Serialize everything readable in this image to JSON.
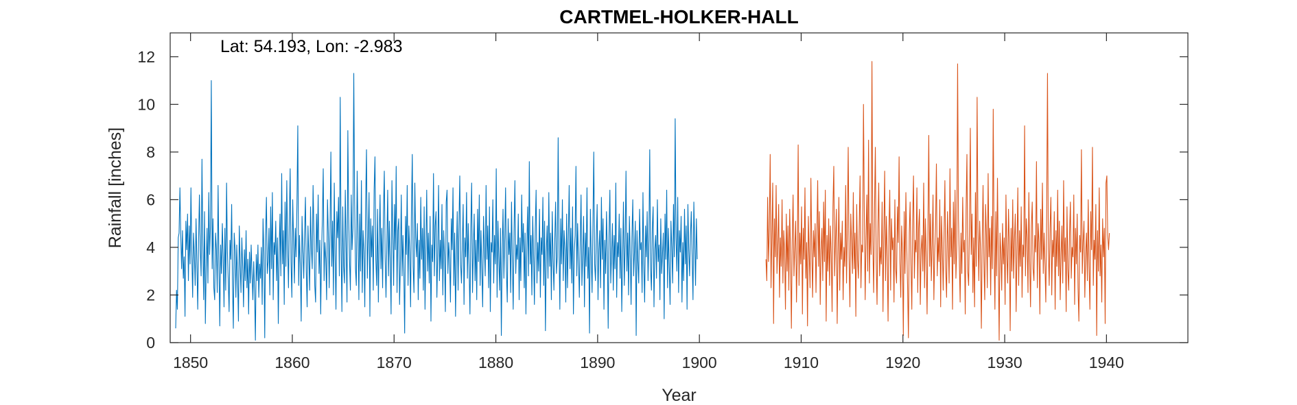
{
  "chart_data": {
    "type": "line",
    "title": "CARTMEL-HOLKER-HALL",
    "annotation": "Lat: 54.193, Lon: -2.983",
    "xlabel": "Year",
    "ylabel": "Rainfall [inches]",
    "xlim": [
      1848,
      1948
    ],
    "ylim": [
      0,
      13
    ],
    "xticks": [
      1850,
      1860,
      1870,
      1880,
      1890,
      1900,
      1910,
      1920,
      1930,
      1940
    ],
    "yticks": [
      0,
      2,
      4,
      6,
      8,
      10,
      12
    ],
    "grid": false,
    "legend": false,
    "x_start": 1848.54,
    "x_step_years": 0.08333,
    "series": [
      {
        "color": "#0072BD",
        "start_year": 1848.54,
        "values": [
          0.6,
          2.2,
          1.4,
          4.4,
          4.6,
          6.5,
          4.5,
          3.1,
          4.7,
          2.7,
          3.6,
          1.1,
          5.1,
          3.9,
          5.4,
          2.6,
          4.9,
          3.3,
          6.5,
          3.8,
          1.9,
          4.6,
          3.7,
          2.4,
          5.2,
          3.4,
          1.4,
          4.3,
          6.2,
          3.9,
          2.8,
          7.7,
          4.1,
          1.8,
          5.5,
          0.8,
          3.2,
          4.8,
          2.5,
          6.3,
          3.7,
          4.9,
          11.0,
          3.1,
          5.2,
          2.3,
          1.8,
          4.6,
          3.9,
          2.1,
          6.6,
          3.4,
          0.7,
          4.1,
          2.9,
          5.0,
          3.6,
          1.5,
          4.8,
          2.2,
          6.7,
          3.8,
          2.6,
          1.3,
          4.3,
          3.5,
          5.8,
          2.4,
          0.6,
          4.6,
          3.9,
          1.9,
          4.1,
          2.7,
          0.9,
          4.9,
          3.3,
          2.1,
          4.4,
          3.2,
          1.5,
          3.9,
          2.6,
          4.7,
          2.3,
          3.5,
          1.2,
          3.8,
          2.5,
          4.1,
          2.9,
          1.8,
          3.4,
          2.2,
          0.1,
          3.7,
          2.6,
          4.1,
          1.9,
          3.3,
          2.7,
          4.0,
          1.6,
          5.2,
          3.8,
          0.2,
          4.5,
          6.1,
          2.9,
          3.4,
          4.8,
          2.0,
          5.7,
          3.1,
          6.3,
          1.8,
          4.2,
          3.7,
          5.1,
          2.6,
          4.4,
          0.8,
          3.9,
          5.4,
          2.8,
          7.1,
          3.3,
          4.7,
          1.6,
          5.9,
          3.2,
          6.8,
          4.1,
          2.3,
          5.2,
          7.3,
          3.4,
          1.9,
          6.0,
          4.3,
          2.5,
          4.8,
          3.6,
          5.9,
          9.1,
          2.4,
          4.5,
          3.2,
          0.9,
          5.3,
          3.9,
          2.7,
          4.6,
          6.1,
          3.0,
          1.5,
          4.9,
          3.6,
          2.2,
          5.7,
          4.0,
          3.1,
          6.6,
          4.7,
          2.4,
          1.7,
          5.4,
          3.8,
          6.2,
          2.9,
          4.3,
          1.2,
          3.8,
          5.2,
          7.3,
          2.6,
          4.2,
          3.5,
          1.8,
          6.0,
          4.6,
          2.3,
          4.8,
          8.0,
          3.2,
          5.1,
          2.0,
          6.7,
          3.7,
          1.4,
          5.5,
          4.4,
          6.1,
          2.8,
          10.3,
          4.1,
          1.3,
          5.7,
          3.2,
          2.5,
          6.4,
          4.0,
          1.7,
          8.9,
          5.3,
          3.4,
          2.2,
          6.2,
          3.9,
          4.8,
          11.3,
          5.9,
          3.1,
          2.4,
          7.2,
          4.6,
          1.8,
          5.4,
          3.0,
          6.8,
          2.1,
          4.7,
          3.8,
          1.5,
          5.9,
          8.1,
          2.7,
          4.4,
          6.3,
          1.1,
          5.2,
          3.6,
          4.9,
          2.2,
          6.4,
          7.8,
          3.5,
          2.4,
          5.6,
          1.7,
          4.3,
          6.2,
          3.1,
          4.8,
          2.3,
          5.5,
          7.2,
          3.6,
          1.9,
          4.1,
          6.4,
          2.8,
          5.1,
          3.4,
          1.2,
          6.8,
          4.6,
          2.4,
          5.8,
          3.9,
          7.4,
          2.1,
          4.7,
          5.2,
          1.6,
          3.4,
          6.2,
          2.8,
          4.5,
          3.1,
          0.4,
          5.3,
          3.7,
          6.6,
          2.4,
          4.9,
          3.8,
          1.5,
          5.6,
          7.9,
          3.2,
          2.1,
          6.7,
          4.4,
          3.6,
          5.0,
          1.8,
          4.3,
          2.7,
          6.1,
          3.5,
          4.8,
          2.2,
          5.7,
          1.4,
          3.9,
          6.4,
          3.0,
          4.6,
          2.5,
          5.3,
          0.9,
          4.1,
          3.4,
          7.1,
          2.8,
          4.9,
          5.5,
          1.9,
          3.8,
          6.6,
          2.6,
          4.3,
          3.1,
          5.8,
          2.0,
          4.7,
          3.6,
          1.3,
          5.9,
          6.4,
          2.9,
          4.2,
          3.5,
          1.7,
          5.2,
          3.9,
          6.5,
          2.4,
          4.6,
          1.1,
          3.7,
          5.5,
          2.2,
          4.9,
          7.0,
          3.3,
          2.5,
          4.1,
          5.8,
          1.6,
          4.4,
          3.6,
          6.3,
          2.7,
          5.0,
          3.2,
          1.2,
          4.8,
          6.7,
          2.1,
          3.9,
          5.4,
          2.6,
          4.3,
          1.8,
          5.6,
          3.4,
          6.2,
          2.4,
          4.7,
          3.1,
          1.5,
          5.3,
          4.0,
          2.8,
          6.6,
          3.5,
          4.9,
          2.3,
          5.7,
          1.3,
          4.2,
          3.8,
          6.0,
          2.5,
          4.5,
          3.3,
          7.3,
          1.9,
          5.1,
          3.6,
          2.2,
          4.8,
          0.3,
          3.9,
          5.6,
          2.7,
          4.3,
          6.5,
          3.0,
          1.7,
          5.2,
          3.7,
          4.6,
          2.1,
          5.9,
          3.4,
          1.4,
          4.7,
          6.8,
          2.9,
          4.1,
          3.5,
          5.4,
          1.8,
          4.4,
          2.6,
          6.2,
          3.8,
          5.0,
          2.3,
          4.6,
          1.2,
          3.9,
          5.7,
          2.8,
          7.6,
          3.3,
          4.5,
          2.0,
          5.3,
          3.6,
          1.6,
          4.8,
          6.4,
          2.5,
          4.2,
          3.0,
          5.6,
          1.9,
          4.4,
          3.7,
          6.1,
          2.4,
          5.1,
          0.5,
          3.8,
          4.9,
          2.7,
          6.3,
          3.2,
          4.6,
          1.8,
          5.5,
          3.5,
          2.2,
          4.3,
          5.9,
          2.9,
          3.6,
          8.6,
          4.1,
          1.4,
          5.2,
          3.3,
          6.0,
          2.6,
          4.7,
          3.9,
          1.7,
          5.4,
          2.3,
          4.4,
          6.6,
          3.1,
          4.8,
          2.5,
          5.7,
          1.2,
          3.8,
          4.5,
          7.4,
          2.8,
          5.0,
          3.4,
          1.9,
          4.2,
          6.2,
          2.4,
          3.7,
          5.3,
          1.5,
          4.6,
          3.2,
          6.5,
          2.7,
          4.0,
          0.4,
          5.6,
          3.6,
          2.1,
          4.9,
          8.0,
          3.3,
          2.6,
          4.4,
          5.8,
          1.8,
          3.9,
          4.7,
          2.3,
          6.1,
          3.5,
          5.2,
          1.4,
          4.3,
          2.9,
          5.5,
          3.8,
          0.6,
          4.6,
          6.4,
          2.5,
          3.7,
          5.0,
          2.2,
          4.5,
          3.1,
          6.7,
          1.9,
          4.2,
          3.6,
          5.4,
          2.7,
          4.8,
          1.3,
          3.5,
          5.9,
          2.4,
          4.1,
          7.2,
          3.0,
          4.6,
          2.0,
          5.3,
          3.7,
          1.6,
          4.4,
          6.0,
          2.8,
          3.8,
          5.1,
          0.3,
          4.7,
          3.4,
          2.5,
          5.6,
          3.9,
          4.2,
          2.1,
          6.3,
          3.3,
          1.7,
          4.9,
          3.6,
          5.5,
          2.6,
          4.3,
          8.1,
          3.1,
          2.2,
          4.8,
          5.7,
          1.5,
          3.9,
          4.5,
          2.7,
          6.0,
          3.4,
          4.1,
          1.8,
          5.2,
          2.9,
          3.7,
          4.6,
          1.0,
          5.4,
          3.5,
          6.4,
          2.3,
          4.8,
          3.2,
          1.6,
          5.1,
          4.0,
          2.5,
          5.8,
          3.6,
          9.4,
          4.4,
          3.0,
          6.1,
          2.1,
          4.7,
          3.8,
          5.3,
          1.7,
          4.2,
          2.6,
          5.6,
          3.3,
          4.9,
          1.4,
          5.8,
          3.9,
          2.8,
          4.5,
          5.5,
          3.6,
          1.8,
          5.9,
          4.2,
          2.4,
          5.2,
          3.5
        ]
      },
      {
        "color": "#D95319",
        "start_year": 1906.54,
        "values": [
          3.5,
          2.6,
          6.1,
          3.4,
          4.8,
          7.9,
          2.3,
          4.5,
          6.7,
          0.8,
          5.2,
          3.6,
          6.6,
          2.9,
          4.1,
          5.8,
          1.9,
          4.4,
          3.2,
          6.0,
          2.5,
          4.7,
          3.8,
          1.4,
          5.4,
          3.0,
          4.9,
          2.2,
          5.6,
          3.7,
          0.6,
          4.3,
          6.2,
          2.8,
          4.0,
          5.1,
          1.7,
          3.9,
          8.3,
          2.4,
          4.6,
          3.3,
          5.7,
          1.2,
          4.8,
          3.5,
          6.5,
          2.7,
          4.2,
          0.7,
          5.3,
          3.8,
          2.3,
          6.9,
          4.1,
          1.9,
          4.7,
          3.6,
          5.0,
          2.1,
          4.4,
          6.8,
          3.2,
          5.5,
          1.6,
          3.9,
          4.8,
          2.6,
          5.9,
          3.4,
          6.4,
          0.9,
          4.5,
          3.0,
          5.2,
          2.4,
          4.9,
          3.7,
          1.3,
          5.7,
          7.4,
          2.8,
          4.3,
          5.6,
          0.8,
          3.8,
          6.1,
          2.2,
          4.6,
          3.5,
          5.1,
          1.8,
          4.0,
          3.2,
          6.6,
          2.5,
          4.8,
          8.2,
          3.6,
          1.5,
          5.4,
          4.2,
          2.9,
          6.3,
          3.1,
          4.6,
          1.1,
          5.8,
          3.5,
          2.7,
          4.9,
          7.0,
          2.3,
          4.1,
          3.8,
          10.0,
          5.5,
          1.8,
          4.4,
          6.2,
          3.0,
          8.5,
          2.5,
          5.0,
          3.7,
          11.8,
          4.3,
          2.1,
          5.6,
          8.2,
          3.4,
          1.6,
          4.8,
          6.7,
          2.8,
          4.0,
          3.3,
          5.9,
          1.3,
          4.5,
          7.2,
          2.6,
          5.3,
          3.6,
          0.9,
          4.7,
          6.4,
          2.2,
          5.2,
          3.9,
          4.4,
          1.7,
          6.0,
          3.1,
          2.5,
          5.7,
          4.2,
          7.8,
          3.4,
          1.9,
          4.9,
          3.7,
          0.3,
          5.5,
          2.9,
          6.3,
          4.1,
          2.4,
          0.2,
          4.6,
          5.9,
          3.3,
          1.4,
          5.1,
          7.0,
          2.7,
          4.3,
          3.8,
          6.5,
          2.1,
          4.8,
          5.6,
          1.6,
          3.9,
          4.5,
          3.0,
          6.7,
          2.3,
          5.2,
          3.6,
          1.2,
          4.7,
          8.7,
          3.2,
          5.4,
          2.6,
          4.1,
          6.2,
          1.8,
          3.7,
          4.9,
          7.5,
          2.8,
          4.4,
          3.4,
          6.0,
          1.5,
          5.3,
          3.9,
          2.2,
          4.6,
          6.8,
          3.1,
          1.9,
          5.5,
          4.2,
          2.5,
          7.3,
          3.6,
          4.8,
          1.4,
          5.9,
          3.3,
          6.4,
          2.7,
          4.0,
          11.7,
          5.2,
          3.5,
          1.7,
          4.6,
          2.9,
          6.1,
          3.8,
          4.3,
          1.2,
          5.6,
          7.9,
          3.0,
          2.4,
          4.9,
          9.0,
          3.7,
          5.4,
          2.1,
          4.4,
          1.5,
          6.3,
          3.2,
          10.3,
          4.7,
          2.6,
          5.1,
          3.9,
          0.6,
          4.2,
          6.6,
          3.4,
          1.8,
          5.8,
          4.5,
          2.3,
          7.1,
          3.6,
          4.8,
          2.0,
          5.3,
          3.1,
          9.8,
          4.0,
          1.4,
          5.5,
          2.8,
          6.9,
          3.5,
          0.1,
          4.6,
          3.8,
          2.2,
          5.0,
          3.3,
          4.4,
          1.6,
          6.2,
          3.7,
          2.5,
          5.6,
          4.1,
          0.5,
          4.8,
          3.0,
          6.0,
          2.7,
          4.3,
          5.4,
          1.3,
          3.9,
          6.5,
          2.4,
          4.7,
          3.2,
          5.7,
          1.9,
          4.1,
          3.6,
          9.1,
          2.8,
          5.2,
          4.4,
          2.1,
          6.3,
          3.4,
          1.5,
          4.9,
          5.9,
          3.1,
          2.6,
          4.5,
          3.8,
          7.6,
          2.3,
          5.0,
          4.2,
          1.2,
          5.6,
          3.5,
          6.7,
          2.9,
          4.6,
          3.3,
          1.7,
          5.3,
          11.3,
          3.9,
          2.4,
          4.8,
          6.1,
          2.0,
          4.3,
          3.6,
          5.5,
          1.4,
          4.7,
          3.2,
          6.4,
          2.8,
          5.1,
          1.8,
          3.7,
          4.9,
          2.5,
          6.8,
          3.4,
          4.4,
          1.3,
          5.7,
          3.1,
          2.2,
          4.6,
          5.9,
          2.7,
          4.0,
          3.6,
          6.2,
          1.6,
          4.8,
          3.3,
          5.4,
          2.3,
          0.9,
          4.5,
          3.8,
          8.1,
          2.9,
          4.2,
          5.1,
          1.9,
          3.7,
          4.6,
          2.6,
          6.0,
          3.2,
          1.4,
          5.5,
          3.9,
          8.2,
          2.4,
          4.3,
          3.5,
          5.8,
          0.3,
          4.7,
          3.0,
          6.5,
          2.8,
          4.1,
          1.7,
          5.2,
          3.6,
          4.8,
          0.8,
          6.7,
          7.0,
          4.5,
          3.9,
          4.6
        ]
      }
    ]
  }
}
